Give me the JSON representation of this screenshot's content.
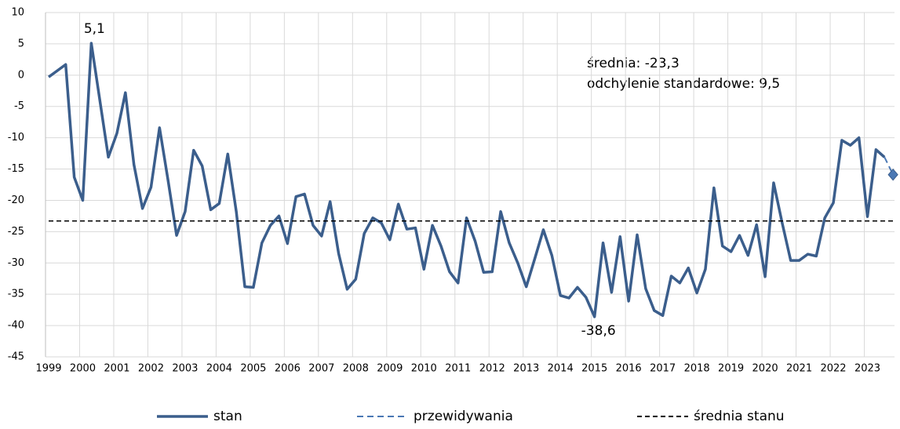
{
  "chart_data": {
    "type": "line",
    "categories": [
      "1999",
      null,
      null,
      null,
      "2000",
      null,
      null,
      null,
      "2001",
      null,
      null,
      null,
      "2002",
      null,
      null,
      null,
      "2003",
      null,
      null,
      null,
      "2004",
      null,
      null,
      null,
      "2005",
      null,
      null,
      null,
      "2006",
      null,
      null,
      null,
      "2007",
      null,
      null,
      null,
      "2008",
      null,
      null,
      null,
      "2009",
      null,
      null,
      null,
      "2010",
      null,
      null,
      null,
      "2011",
      null,
      null,
      null,
      "2012",
      null,
      null,
      null,
      "2013",
      null,
      null,
      null,
      "2014",
      null,
      null,
      null,
      "2015",
      null,
      null,
      null,
      "2016",
      null,
      null,
      null,
      "2017",
      null,
      null,
      null,
      "2018",
      null,
      null,
      null,
      "2019",
      null,
      null,
      null,
      "2020",
      null,
      null,
      null,
      "2021",
      null,
      null,
      null,
      "2022",
      null,
      null,
      null,
      "2023",
      null,
      null,
      null
    ],
    "series": [
      {
        "name": "stan",
        "color": "#3b5e8c",
        "style": "solid",
        "values": [
          -0.3,
          0.7,
          1.7,
          -16.3,
          -20,
          5.1,
          -4,
          -13.1,
          -9.3,
          -2.8,
          -14.3,
          -21.3,
          -17.9,
          -8.4,
          -16.8,
          -25.6,
          -21.8,
          -12,
          -14.5,
          -21.5,
          -20.5,
          -12.6,
          -21.8,
          -33.8,
          -33.9,
          -26.8,
          -24,
          -22.5,
          -26.9,
          -19.4,
          -19,
          -24,
          -25.7,
          -20.2,
          -28.5,
          -34.2,
          -32.6,
          -25.3,
          -22.8,
          -23.6,
          -26.3,
          -20.6,
          -24.6,
          -24.4,
          -31,
          -24,
          -27.3,
          -31.4,
          -33.2,
          -22.8,
          -26.5,
          -31.5,
          -31.4,
          -21.8,
          -26.8,
          -30,
          -33.8,
          -29.3,
          -24.7,
          -28.8,
          -35.2,
          -35.6,
          -33.9,
          -35.5,
          -38.6,
          -26.8,
          -34.7,
          -25.8,
          -36.1,
          -25.5,
          -34.1,
          -37.6,
          -38.4,
          -32.1,
          -33.2,
          -30.8,
          -34.8,
          -31,
          -18,
          -27.3,
          -28.2,
          -25.6,
          -28.8,
          -23.9,
          -32.2,
          -17.2,
          -23.6,
          -29.6,
          -29.6,
          -28.6,
          -28.9,
          -22.8,
          -20.4,
          -10.4,
          -11.2,
          -10,
          -22.6,
          -11.9,
          -13.1,
          null
        ],
        "value_labels": [
          null,
          null,
          null,
          null,
          null,
          "5,1",
          null,
          null,
          null,
          null,
          null,
          null,
          null,
          null,
          null,
          null,
          null,
          null,
          null,
          null,
          null,
          null,
          null,
          null,
          null,
          null,
          null,
          null,
          null,
          null,
          null,
          null,
          null,
          null,
          null,
          null,
          null,
          null,
          null,
          null,
          null,
          null,
          null,
          null,
          null,
          null,
          null,
          null,
          null,
          null,
          null,
          null,
          null,
          null,
          null,
          null,
          null,
          null,
          null,
          null,
          null,
          null,
          null,
          null,
          "-38,6",
          null,
          null,
          null,
          null,
          null,
          null,
          null,
          null,
          null,
          null,
          null,
          null,
          null,
          null,
          null,
          null,
          null,
          null,
          null,
          null,
          null,
          null,
          null,
          null,
          null,
          null,
          null,
          null,
          null,
          null,
          null,
          null,
          null,
          null,
          null
        ]
      },
      {
        "name": "przewidywania",
        "color": "#4a78b4",
        "style": "dashed",
        "values": [
          null,
          null,
          null,
          null,
          null,
          null,
          null,
          null,
          null,
          null,
          null,
          null,
          null,
          null,
          null,
          null,
          null,
          null,
          null,
          null,
          null,
          null,
          null,
          null,
          null,
          null,
          null,
          null,
          null,
          null,
          null,
          null,
          null,
          null,
          null,
          null,
          null,
          null,
          null,
          null,
          null,
          null,
          null,
          null,
          null,
          null,
          null,
          null,
          null,
          null,
          null,
          null,
          null,
          null,
          null,
          null,
          null,
          null,
          null,
          null,
          null,
          null,
          null,
          null,
          null,
          null,
          null,
          null,
          null,
          null,
          null,
          null,
          null,
          null,
          null,
          null,
          null,
          null,
          null,
          null,
          null,
          null,
          null,
          null,
          null,
          null,
          null,
          null,
          null,
          null,
          null,
          null,
          null,
          null,
          null,
          null,
          null,
          null,
          -13.1,
          -15.9
        ]
      },
      {
        "name": "średnia stanu",
        "color": "#000000",
        "style": "dashed",
        "values": [
          -23.3,
          -23.3,
          -23.3,
          -23.3,
          -23.3,
          -23.3,
          -23.3,
          -23.3,
          -23.3,
          -23.3,
          -23.3,
          -23.3,
          -23.3,
          -23.3,
          -23.3,
          -23.3,
          -23.3,
          -23.3,
          -23.3,
          -23.3,
          -23.3,
          -23.3,
          -23.3,
          -23.3,
          -23.3,
          -23.3,
          -23.3,
          -23.3,
          -23.3,
          -23.3,
          -23.3,
          -23.3,
          -23.3,
          -23.3,
          -23.3,
          -23.3,
          -23.3,
          -23.3,
          -23.3,
          -23.3,
          -23.3,
          -23.3,
          -23.3,
          -23.3,
          -23.3,
          -23.3,
          -23.3,
          -23.3,
          -23.3,
          -23.3,
          -23.3,
          -23.3,
          -23.3,
          -23.3,
          -23.3,
          -23.3,
          -23.3,
          -23.3,
          -23.3,
          -23.3,
          -23.3,
          -23.3,
          -23.3,
          -23.3,
          -23.3,
          -23.3,
          -23.3,
          -23.3,
          -23.3,
          -23.3,
          -23.3,
          -23.3,
          -23.3,
          -23.3,
          -23.3,
          -23.3,
          -23.3,
          -23.3,
          -23.3,
          -23.3,
          -23.3,
          -23.3,
          -23.3,
          -23.3,
          -23.3,
          -23.3,
          -23.3,
          -23.3,
          -23.3,
          -23.3,
          -23.3,
          -23.3,
          -23.3,
          -23.3,
          -23.3,
          -23.3,
          -23.3,
          -23.3,
          -23.3,
          -23.3
        ]
      }
    ],
    "annotations": [
      "średnia: -23,3",
      "odchylenie standardowe: 9,5"
    ],
    "ylim": [
      -45,
      10
    ],
    "yticks": [
      10,
      5,
      0,
      -5,
      -10,
      -15,
      -20,
      -25,
      -30,
      -35,
      -40,
      -45
    ],
    "grid": true,
    "legend": "bottom"
  }
}
